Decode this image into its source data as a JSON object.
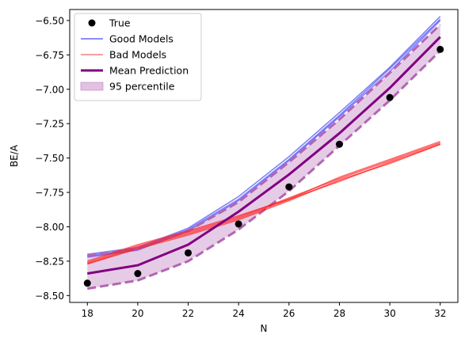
{
  "chart_data": {
    "type": "line",
    "title": "",
    "xlabel": "N",
    "ylabel": "BE/A",
    "xlim": [
      17.3,
      32.7
    ],
    "ylim": [
      -8.55,
      -6.42
    ],
    "xticks": [
      18,
      20,
      22,
      24,
      26,
      28,
      30,
      32
    ],
    "yticks": [
      -8.5,
      -8.25,
      -8.0,
      -7.75,
      -7.5,
      -7.25,
      -7.0,
      -6.75,
      -6.5
    ],
    "xtick_labels": [
      "18",
      "20",
      "22",
      "24",
      "26",
      "28",
      "30",
      "32"
    ],
    "ytick_labels": [
      "−8.50",
      "−8.25",
      "−8.00",
      "−7.75",
      "−7.50",
      "−7.25",
      "−7.00",
      "−6.75",
      "−6.50"
    ],
    "grid": false,
    "legend_position": "top-left",
    "x": [
      18,
      20,
      22,
      24,
      26,
      28,
      30,
      32
    ],
    "true_values": [
      -8.41,
      -8.34,
      -8.19,
      -7.98,
      -7.71,
      -7.4,
      -7.06,
      -6.71
    ],
    "good_models": [
      [
        -8.2,
        -8.15,
        -8.01,
        -7.78,
        -7.49,
        -7.17,
        -6.84,
        -6.47
      ],
      [
        -8.21,
        -8.16,
        -8.02,
        -7.8,
        -7.51,
        -7.19,
        -6.85,
        -6.49
      ],
      [
        -8.22,
        -8.17,
        -8.03,
        -7.81,
        -7.52,
        -7.2,
        -6.87,
        -6.5
      ]
    ],
    "bad_models": [
      [
        -8.27,
        -8.15,
        -8.05,
        -7.94,
        -7.8,
        -7.67,
        -7.53,
        -7.4
      ],
      [
        -8.26,
        -8.14,
        -8.04,
        -7.93,
        -7.79,
        -7.65,
        -7.52,
        -7.39
      ],
      [
        -8.25,
        -8.13,
        -8.03,
        -7.92,
        -7.8,
        -7.64,
        -7.51,
        -7.38
      ],
      [
        -8.27,
        -8.16,
        -8.06,
        -7.95,
        -7.81,
        -7.66,
        -7.54,
        -7.4
      ]
    ],
    "mean_prediction": [
      -8.34,
      -8.28,
      -8.13,
      -7.89,
      -7.62,
      -7.32,
      -6.99,
      -6.62
    ],
    "percentile_upper": [
      -8.21,
      -8.16,
      -8.03,
      -7.82,
      -7.53,
      -7.22,
      -6.88,
      -6.53
    ],
    "percentile_lower": [
      -8.45,
      -8.39,
      -8.25,
      -8.02,
      -7.74,
      -7.41,
      -7.08,
      -6.72
    ],
    "legend": [
      {
        "label": "True",
        "kind": "marker",
        "color": "#000000"
      },
      {
        "label": "Good Models",
        "kind": "line",
        "color": "#6666ff"
      },
      {
        "label": "Bad Models",
        "kind": "line",
        "color": "#f08080"
      },
      {
        "label": "Mean Prediction",
        "kind": "thick-line",
        "color": "#800080"
      },
      {
        "label": "95 percentile",
        "kind": "patch",
        "color": "#e2c2e2"
      }
    ],
    "colors": {
      "good": "#2f2ff5",
      "bad": "#ff1a1a",
      "mean": "#800080",
      "band_fill": "#e2c2e2",
      "band_edge": "#b266b2",
      "true": "#000000"
    }
  }
}
